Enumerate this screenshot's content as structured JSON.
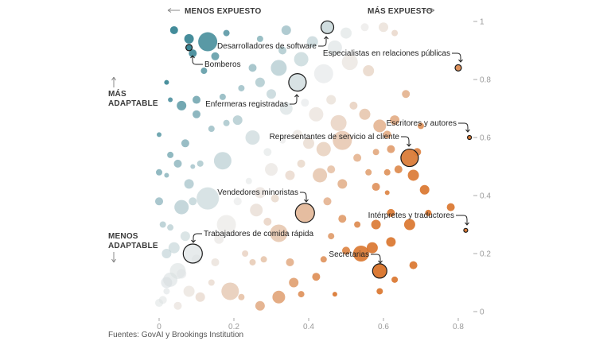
{
  "chart_data": {
    "type": "scatter",
    "title": "",
    "xlabel_left": "MENOS EXPUESTO",
    "xlabel_right": "MÁS EXPUESTO",
    "ylabel_top": [
      "MÁS",
      "ADAPTABLE"
    ],
    "ylabel_bottom": [
      "MENOS",
      "ADAPTABLE"
    ],
    "xlim": [
      0,
      0.84
    ],
    "ylim": [
      0,
      1
    ],
    "x_ticks": [
      0,
      0.2,
      0.4,
      0.6,
      0.8
    ],
    "x_tick_labels": [
      "0",
      "0.2",
      "0.4",
      "0.6",
      "0.8"
    ],
    "y_ticks": [
      0,
      0.2,
      0.4,
      0.6,
      0.8,
      1
    ],
    "y_tick_labels": [
      "0",
      "0.2",
      "0.4",
      "0.6",
      "0.8",
      "1"
    ],
    "grid": false,
    "color_scale": {
      "low": "#2f7f8f",
      "mid": "#e4e6e6",
      "high": "#d9732a"
    },
    "highlighted": [
      {
        "label": "Bomberos",
        "x": 0.08,
        "y": 0.91,
        "size": 4
      },
      {
        "label": "Desarrolladores de software",
        "x": 0.45,
        "y": 0.98,
        "size": 8
      },
      {
        "label": "Especialistas en relaciones públicas",
        "x": 0.8,
        "y": 0.84,
        "size": 4
      },
      {
        "label": "Enfermeras registradas",
        "x": 0.37,
        "y": 0.79,
        "size": 11
      },
      {
        "label": "Escritores y autores",
        "x": 0.83,
        "y": 0.6,
        "size": 2.5
      },
      {
        "label": "Representantes de servicio al cliente",
        "x": 0.67,
        "y": 0.53,
        "size": 11
      },
      {
        "label": "Vendedores minoristas",
        "x": 0.39,
        "y": 0.34,
        "size": 12
      },
      {
        "label": "Intérpretes y traductores",
        "x": 0.82,
        "y": 0.28,
        "size": 2.5
      },
      {
        "label": "Trabajadores de comida rápida",
        "x": 0.09,
        "y": 0.2,
        "size": 12
      },
      {
        "label": "Secretarias",
        "x": 0.59,
        "y": 0.14,
        "size": 9
      }
    ],
    "points": [
      [
        0.02,
        0.1,
        7
      ],
      [
        0.01,
        0.04,
        5
      ],
      [
        0.03,
        0.11,
        9
      ],
      [
        0.05,
        0.14,
        10
      ],
      [
        0.02,
        0.2,
        6
      ],
      [
        0.04,
        0.22,
        7
      ],
      [
        0.07,
        0.26,
        6
      ],
      [
        0.01,
        0.3,
        4
      ],
      [
        0.03,
        0.29,
        4
      ],
      [
        0.0,
        0.38,
        5
      ],
      [
        0.06,
        0.36,
        9
      ],
      [
        0.09,
        0.38,
        5
      ],
      [
        0.13,
        0.39,
        14
      ],
      [
        0.08,
        0.44,
        6
      ],
      [
        0.0,
        0.48,
        4
      ],
      [
        0.02,
        0.47,
        3
      ],
      [
        0.05,
        0.51,
        5
      ],
      [
        0.09,
        0.5,
        3
      ],
      [
        0.03,
        0.54,
        4
      ],
      [
        0.11,
        0.51,
        4
      ],
      [
        0.17,
        0.52,
        11
      ],
      [
        0.07,
        0.58,
        5
      ],
      [
        0.0,
        0.61,
        3
      ],
      [
        0.14,
        0.63,
        4
      ],
      [
        0.18,
        0.65,
        4
      ],
      [
        0.1,
        0.68,
        5
      ],
      [
        0.03,
        0.73,
        3
      ],
      [
        0.06,
        0.71,
        6
      ],
      [
        0.1,
        0.73,
        5
      ],
      [
        0.02,
        0.79,
        3
      ],
      [
        0.17,
        0.74,
        4
      ],
      [
        0.21,
        0.66,
        6
      ],
      [
        0.25,
        0.6,
        9
      ],
      [
        0.29,
        0.55,
        5
      ],
      [
        0.33,
        0.59,
        4
      ],
      [
        0.13,
        0.93,
        12
      ],
      [
        0.08,
        0.94,
        6
      ],
      [
        0.04,
        0.97,
        5
      ],
      [
        0.09,
        0.89,
        5
      ],
      [
        0.18,
        0.96,
        4
      ],
      [
        0.27,
        0.94,
        4
      ],
      [
        0.33,
        0.9,
        5
      ],
      [
        0.34,
        0.97,
        6
      ],
      [
        0.41,
        0.93,
        7
      ],
      [
        0.47,
        0.91,
        9
      ],
      [
        0.5,
        0.96,
        7
      ],
      [
        0.55,
        0.98,
        5
      ],
      [
        0.6,
        0.98,
        6
      ],
      [
        0.63,
        0.96,
        4
      ],
      [
        0.25,
        0.84,
        5
      ],
      [
        0.27,
        0.79,
        6
      ],
      [
        0.32,
        0.84,
        10
      ],
      [
        0.38,
        0.87,
        9
      ],
      [
        0.44,
        0.82,
        12
      ],
      [
        0.51,
        0.86,
        10
      ],
      [
        0.56,
        0.83,
        7
      ],
      [
        0.22,
        0.77,
        4
      ],
      [
        0.3,
        0.75,
        6
      ],
      [
        0.34,
        0.7,
        8
      ],
      [
        0.39,
        0.72,
        5
      ],
      [
        0.42,
        0.68,
        9
      ],
      [
        0.46,
        0.73,
        6
      ],
      [
        0.48,
        0.65,
        10
      ],
      [
        0.52,
        0.71,
        5
      ],
      [
        0.55,
        0.68,
        7
      ],
      [
        0.59,
        0.64,
        8
      ],
      [
        0.63,
        0.66,
        6
      ],
      [
        0.66,
        0.75,
        5
      ],
      [
        0.7,
        0.64,
        4
      ],
      [
        0.61,
        0.61,
        5
      ],
      [
        0.37,
        0.61,
        6
      ],
      [
        0.4,
        0.58,
        7
      ],
      [
        0.44,
        0.56,
        9
      ],
      [
        0.49,
        0.59,
        12
      ],
      [
        0.53,
        0.53,
        5
      ],
      [
        0.58,
        0.55,
        4
      ],
      [
        0.62,
        0.56,
        5
      ],
      [
        0.3,
        0.49,
        8
      ],
      [
        0.35,
        0.47,
        6
      ],
      [
        0.38,
        0.51,
        5
      ],
      [
        0.43,
        0.47,
        9
      ],
      [
        0.46,
        0.49,
        5
      ],
      [
        0.49,
        0.44,
        6
      ],
      [
        0.56,
        0.48,
        4
      ],
      [
        0.61,
        0.48,
        4
      ],
      [
        0.58,
        0.43,
        5
      ],
      [
        0.64,
        0.49,
        5
      ],
      [
        0.68,
        0.47,
        7
      ],
      [
        0.71,
        0.42,
        6
      ],
      [
        0.61,
        0.41,
        3
      ],
      [
        0.69,
        0.55,
        5
      ],
      [
        0.24,
        0.45,
        4
      ],
      [
        0.27,
        0.41,
        7
      ],
      [
        0.31,
        0.39,
        5
      ],
      [
        0.21,
        0.38,
        5
      ],
      [
        0.26,
        0.35,
        8
      ],
      [
        0.29,
        0.31,
        5
      ],
      [
        0.32,
        0.27,
        11
      ],
      [
        0.18,
        0.3,
        12
      ],
      [
        0.16,
        0.25,
        6
      ],
      [
        0.23,
        0.2,
        4
      ],
      [
        0.45,
        0.38,
        5
      ],
      [
        0.49,
        0.32,
        5
      ],
      [
        0.53,
        0.3,
        4
      ],
      [
        0.58,
        0.3,
        6
      ],
      [
        0.62,
        0.34,
        5
      ],
      [
        0.67,
        0.3,
        7
      ],
      [
        0.72,
        0.34,
        4
      ],
      [
        0.78,
        0.36,
        5
      ],
      [
        0.46,
        0.26,
        4
      ],
      [
        0.5,
        0.21,
        5
      ],
      [
        0.54,
        0.2,
        10
      ],
      [
        0.57,
        0.22,
        7
      ],
      [
        0.62,
        0.24,
        6
      ],
      [
        0.68,
        0.16,
        5
      ],
      [
        0.63,
        0.11,
        4
      ],
      [
        0.44,
        0.18,
        4
      ],
      [
        0.42,
        0.12,
        5
      ],
      [
        0.36,
        0.1,
        6
      ],
      [
        0.32,
        0.05,
        8
      ],
      [
        0.27,
        0.02,
        6
      ],
      [
        0.22,
        0.05,
        4
      ],
      [
        0.19,
        0.07,
        11
      ],
      [
        0.11,
        0.05,
        6
      ],
      [
        0.08,
        0.07,
        7
      ],
      [
        0.05,
        0.02,
        5
      ],
      [
        0.0,
        0.03,
        5
      ],
      [
        0.02,
        0.07,
        4
      ],
      [
        0.06,
        0.13,
        6
      ],
      [
        0.15,
        0.17,
        5
      ],
      [
        0.25,
        0.17,
        4
      ],
      [
        0.14,
        0.1,
        4
      ],
      [
        0.1,
        0.18,
        6
      ],
      [
        0.28,
        0.18,
        4
      ],
      [
        0.38,
        0.06,
        4
      ],
      [
        0.35,
        0.17,
        5
      ],
      [
        0.47,
        0.06,
        3
      ],
      [
        0.59,
        0.07,
        4
      ],
      [
        0.12,
        0.83,
        4
      ],
      [
        0.15,
        0.88,
        5
      ]
    ]
  },
  "source": "Fuentes: GovAI y Brookings Institution"
}
